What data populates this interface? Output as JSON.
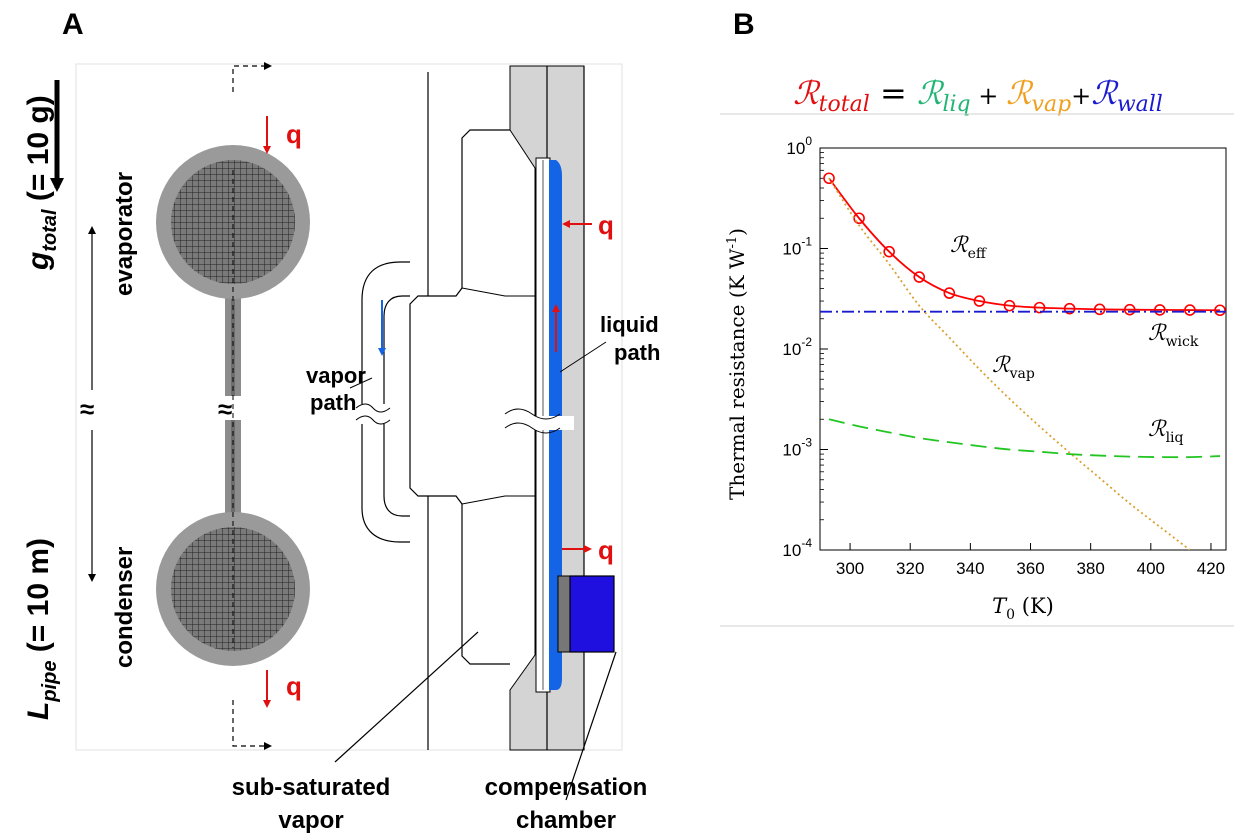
{
  "panel_a": {
    "label": "A",
    "g_total": {
      "main": "g",
      "sub": "total",
      "tail": " (= 10 g)"
    },
    "l_pipe": {
      "main": "L",
      "sub": "pipe",
      "tail": " (= 10 m)"
    },
    "evaporator": "evaporator",
    "condenser": "condenser",
    "q": "q",
    "vapor_path": [
      "vapor",
      "path"
    ],
    "liquid_path": [
      "liquid",
      "path"
    ],
    "sub_saturated_vapor": [
      "sub-saturated",
      "vapor"
    ],
    "compensation_chamber": [
      "compensation",
      "chamber"
    ],
    "break_mark": "≈",
    "colors": {
      "heat_arrow": "#e11010",
      "liquid": "#1464e6",
      "chamber": "#2010e0",
      "wall_gray": "#d4d4d4",
      "tube_gray": "#8c8c8c"
    }
  },
  "panel_b": {
    "label": "B",
    "equation": {
      "total": {
        "sym": "ℛ",
        "sub": "total",
        "color": "#e11010"
      },
      "liq": {
        "sym": "ℛ",
        "sub": "liq",
        "color": "#22b573"
      },
      "vap": {
        "sym": "ℛ",
        "sub": "vap",
        "color": "#f0a020"
      },
      "wall": {
        "sym": "ℛ",
        "sub": "wall",
        "color": "#1a1ad0"
      },
      "equals": "=",
      "plus": "+"
    }
  },
  "chart_data": {
    "type": "line",
    "xlabel": "T0 (K)",
    "ylabel": "Thermal resistance (K W-1)",
    "y_scale": "log",
    "xlim": [
      290,
      425
    ],
    "ylim": [
      0.0001,
      1
    ],
    "x_ticks": [
      300,
      320,
      340,
      360,
      380,
      400,
      420
    ],
    "y_ticks": [
      {
        "base": "10",
        "exp": "0"
      },
      {
        "base": "10",
        "exp": "-1"
      },
      {
        "base": "10",
        "exp": "-2"
      },
      {
        "base": "10",
        "exp": "-3"
      },
      {
        "base": "10",
        "exp": "-4"
      }
    ],
    "series": [
      {
        "name": "ℛeff",
        "label_sym": "ℛ",
        "label_sub": "eff",
        "color": "#ff0000",
        "style": "solid-with-circles",
        "x": [
          293,
          303,
          313,
          323,
          333,
          343,
          353,
          363,
          373,
          383,
          393,
          403,
          413,
          423
        ],
        "y": [
          0.5,
          0.2,
          0.093,
          0.052,
          0.036,
          0.03,
          0.027,
          0.0258,
          0.0252,
          0.0248,
          0.0246,
          0.0245,
          0.0244,
          0.0243
        ]
      },
      {
        "name": "ℛwick",
        "label_sym": "ℛ",
        "label_sub": "wick",
        "color": "#1a1ad0",
        "style": "dash-dot",
        "x": [
          290,
          425
        ],
        "y": [
          0.0235,
          0.0235
        ]
      },
      {
        "name": "ℛvap",
        "label_sym": "ℛ",
        "label_sub": "vap",
        "color": "#d9a030",
        "style": "dotted",
        "x": [
          293,
          303,
          313,
          323,
          333,
          343,
          353,
          363,
          373,
          383,
          393,
          403,
          413
        ],
        "y": [
          0.5,
          0.17,
          0.07,
          0.027,
          0.013,
          0.0063,
          0.0032,
          0.0017,
          0.00093,
          0.00052,
          0.00029,
          0.00017,
          0.0001
        ]
      },
      {
        "name": "ℛliq",
        "label_sym": "ℛ",
        "label_sub": "liq",
        "color": "#22c522",
        "style": "dashed",
        "x": [
          293,
          303,
          313,
          323,
          333,
          343,
          353,
          363,
          373,
          383,
          393,
          403,
          413,
          423
        ],
        "y": [
          0.002,
          0.0017,
          0.00148,
          0.0013,
          0.00118,
          0.00108,
          0.001,
          0.00095,
          0.0009,
          0.00087,
          0.00085,
          0.00084,
          0.00084,
          0.00086
        ]
      }
    ]
  }
}
